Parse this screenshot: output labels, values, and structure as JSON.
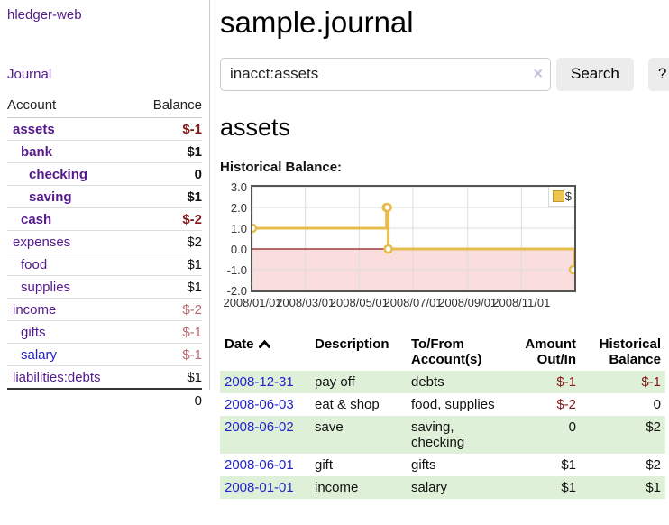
{
  "colors": {
    "link_visited_purple": "#551a8b",
    "link_blue": "#2222cc",
    "negative_strong": "#841717",
    "negative_dim": "#b66a6e",
    "row_shade_green": "#dff0d8",
    "chart_line_gold": "#e6bc4d",
    "chart_negative_fill": "#fadddd",
    "chart_zero_line": "#8b1a1a",
    "button_bg": "#ececec"
  },
  "sidebar": {
    "app_title": "hledger-web",
    "journal_link": "Journal",
    "accounts_header": {
      "account": "Account",
      "balance": "Balance"
    },
    "accounts": [
      {
        "name": "assets",
        "depth": 0,
        "bold": true,
        "balance": "$-1",
        "neg": "strong"
      },
      {
        "name": "bank",
        "depth": 1,
        "bold": true,
        "balance": "$1"
      },
      {
        "name": "checking",
        "depth": 2,
        "bold": true,
        "balance": "0"
      },
      {
        "name": "saving",
        "depth": 2,
        "bold": true,
        "balance": "$1"
      },
      {
        "name": "cash",
        "depth": 1,
        "bold": true,
        "balance": "$-2",
        "neg": "strong"
      },
      {
        "name": "expenses",
        "depth": 0,
        "bold": false,
        "balance": "$2"
      },
      {
        "name": "food",
        "depth": 1,
        "bold": false,
        "balance": "$1"
      },
      {
        "name": "supplies",
        "depth": 1,
        "bold": false,
        "balance": "$1"
      },
      {
        "name": "income",
        "depth": 0,
        "bold": false,
        "balance": "$-2",
        "neg": "dim"
      },
      {
        "name": "gifts",
        "depth": 1,
        "bold": false,
        "balance": "$-1",
        "neg": "dim"
      },
      {
        "name": "salary",
        "depth": 1,
        "bold": false,
        "balance": "$-1",
        "neg": "dim",
        "blue": true
      },
      {
        "name": "liabilities:debts",
        "depth": 0,
        "bold": false,
        "balance": "$1"
      }
    ],
    "total": "0"
  },
  "main": {
    "title": "sample.journal",
    "search": {
      "value": "inacct:assets",
      "clear_icon": "×",
      "button_label": "Search",
      "help_label": "?"
    },
    "account_heading": "assets",
    "chart_label": "Historical Balance:"
  },
  "chart_data": {
    "type": "line",
    "title": "Historical Balance:",
    "step": true,
    "series": [
      {
        "name": "$",
        "points": [
          [
            "2008-01-01",
            1
          ],
          [
            "2008-06-01",
            2
          ],
          [
            "2008-06-02",
            2
          ],
          [
            "2008-06-03",
            0
          ],
          [
            "2008-12-31",
            -1
          ]
        ]
      }
    ],
    "x_range": [
      "2008-01-01",
      "2008-12-31"
    ],
    "x_ticks": [
      "2008/01/01",
      "2008/03/01",
      "2008/05/01",
      "2008/07/01",
      "2008/09/01",
      "2008/11/01"
    ],
    "y_ticks": [
      "3.0",
      "2.0",
      "1.0",
      "0.0",
      "-1.0",
      "-2.0"
    ],
    "ylim": [
      -2,
      3
    ],
    "grid": true,
    "legend": {
      "label": "$",
      "position": "top-right"
    },
    "line_color": "#e6bc4d",
    "marker_fill": "#ffffff",
    "negative_region_fill": "#fadddd",
    "zero_line_color": "#8b1a1a",
    "gridline_color": "#dddddd"
  },
  "register": {
    "columns": {
      "date": "Date",
      "description": "Description",
      "tofrom": "To/From Account(s)",
      "amount": "Amount Out/In",
      "balance": "Historical Balance"
    },
    "rows": [
      {
        "date": "2008-12-31",
        "description": "pay off",
        "accounts": "debts",
        "amount": "$-1",
        "balance": "$-1",
        "amount_neg": true,
        "balance_neg": true,
        "shaded": true
      },
      {
        "date": "2008-06-03",
        "description": "eat & shop",
        "accounts": "food, supplies",
        "amount": "$-2",
        "balance": "0",
        "amount_neg": true,
        "balance_neg": false,
        "shaded": false
      },
      {
        "date": "2008-06-02",
        "description": "save",
        "accounts": "saving, checking",
        "amount": "0",
        "balance": "$2",
        "amount_neg": false,
        "balance_neg": false,
        "shaded": true
      },
      {
        "date": "2008-06-01",
        "description": "gift",
        "accounts": "gifts",
        "amount": "$1",
        "balance": "$2",
        "amount_neg": false,
        "balance_neg": false,
        "shaded": false
      },
      {
        "date": "2008-01-01",
        "description": "income",
        "accounts": "salary",
        "amount": "$1",
        "balance": "$1",
        "amount_neg": false,
        "balance_neg": false,
        "shaded": true
      }
    ]
  }
}
